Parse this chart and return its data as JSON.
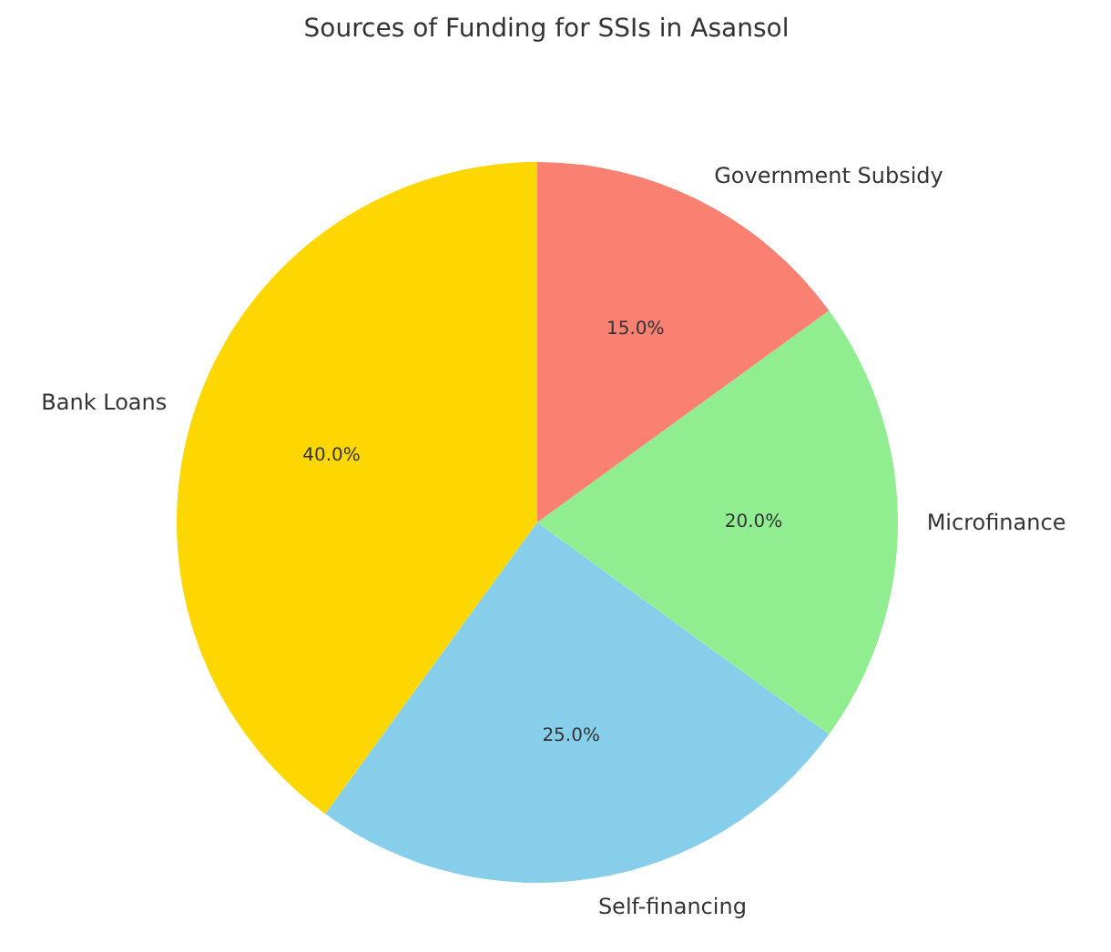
{
  "chart_data": {
    "type": "pie",
    "title": "Sources of Funding for SSIs in Asansol",
    "categories": [
      "Bank Loans",
      "Self-financing",
      "Microfinance",
      "Government Subsidy"
    ],
    "values": [
      40,
      25,
      20,
      15
    ],
    "colors": [
      "#ffd700",
      "#87ceeb",
      "#90ee90",
      "#fa8072"
    ],
    "value_labels": [
      "40.0%",
      "25.0%",
      "20.0%",
      "15.0%"
    ]
  }
}
